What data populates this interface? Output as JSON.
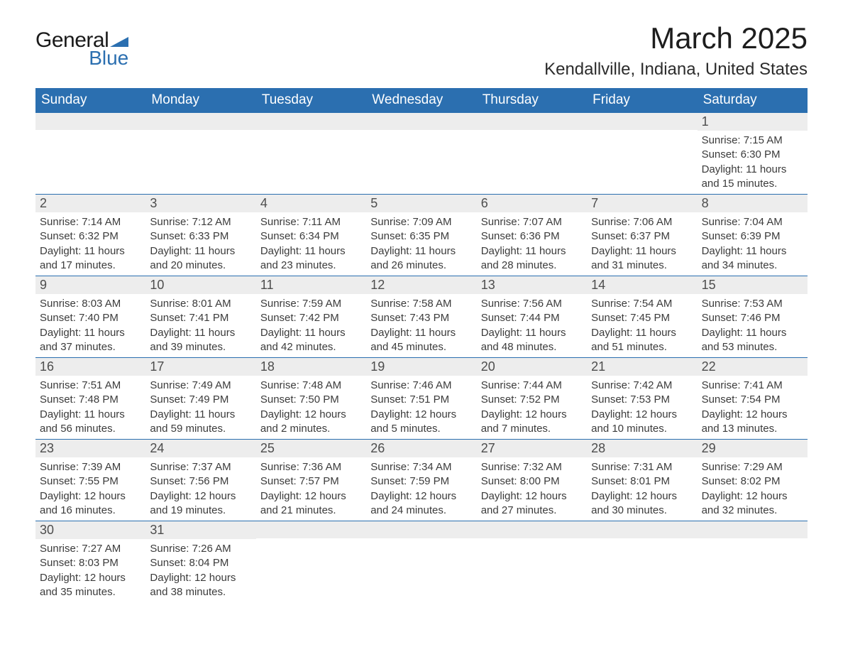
{
  "brand": {
    "text1": "General",
    "text2": "Blue",
    "text1_color": "#1a1a1a",
    "text2_color": "#2b6fb0",
    "triangle_color": "#2b6fb0"
  },
  "header": {
    "month_title": "March 2025",
    "location": "Kendallville, Indiana, United States"
  },
  "theme": {
    "header_bg": "#2b6fb0",
    "header_fg": "#ffffff",
    "daynum_bg": "#ededed",
    "daynum_fg": "#4d4d4d",
    "body_fg": "#3b3b3b",
    "border_color": "#2b6fb0",
    "page_bg": "#ffffff",
    "title_fontsize": 42,
    "location_fontsize": 24,
    "dow_fontsize": 19,
    "daynum_fontsize": 18,
    "body_fontsize": 15
  },
  "days_of_week": [
    "Sunday",
    "Monday",
    "Tuesday",
    "Wednesday",
    "Thursday",
    "Friday",
    "Saturday"
  ],
  "grid": {
    "leading_blanks": 6,
    "days": [
      {
        "n": "1",
        "sunrise": "7:15 AM",
        "sunset": "6:30 PM",
        "day_h": 11,
        "day_m": 15
      },
      {
        "n": "2",
        "sunrise": "7:14 AM",
        "sunset": "6:32 PM",
        "day_h": 11,
        "day_m": 17
      },
      {
        "n": "3",
        "sunrise": "7:12 AM",
        "sunset": "6:33 PM",
        "day_h": 11,
        "day_m": 20
      },
      {
        "n": "4",
        "sunrise": "7:11 AM",
        "sunset": "6:34 PM",
        "day_h": 11,
        "day_m": 23
      },
      {
        "n": "5",
        "sunrise": "7:09 AM",
        "sunset": "6:35 PM",
        "day_h": 11,
        "day_m": 26
      },
      {
        "n": "6",
        "sunrise": "7:07 AM",
        "sunset": "6:36 PM",
        "day_h": 11,
        "day_m": 28
      },
      {
        "n": "7",
        "sunrise": "7:06 AM",
        "sunset": "6:37 PM",
        "day_h": 11,
        "day_m": 31
      },
      {
        "n": "8",
        "sunrise": "7:04 AM",
        "sunset": "6:39 PM",
        "day_h": 11,
        "day_m": 34
      },
      {
        "n": "9",
        "sunrise": "8:03 AM",
        "sunset": "7:40 PM",
        "day_h": 11,
        "day_m": 37
      },
      {
        "n": "10",
        "sunrise": "8:01 AM",
        "sunset": "7:41 PM",
        "day_h": 11,
        "day_m": 39
      },
      {
        "n": "11",
        "sunrise": "7:59 AM",
        "sunset": "7:42 PM",
        "day_h": 11,
        "day_m": 42
      },
      {
        "n": "12",
        "sunrise": "7:58 AM",
        "sunset": "7:43 PM",
        "day_h": 11,
        "day_m": 45
      },
      {
        "n": "13",
        "sunrise": "7:56 AM",
        "sunset": "7:44 PM",
        "day_h": 11,
        "day_m": 48
      },
      {
        "n": "14",
        "sunrise": "7:54 AM",
        "sunset": "7:45 PM",
        "day_h": 11,
        "day_m": 51
      },
      {
        "n": "15",
        "sunrise": "7:53 AM",
        "sunset": "7:46 PM",
        "day_h": 11,
        "day_m": 53
      },
      {
        "n": "16",
        "sunrise": "7:51 AM",
        "sunset": "7:48 PM",
        "day_h": 11,
        "day_m": 56
      },
      {
        "n": "17",
        "sunrise": "7:49 AM",
        "sunset": "7:49 PM",
        "day_h": 11,
        "day_m": 59
      },
      {
        "n": "18",
        "sunrise": "7:48 AM",
        "sunset": "7:50 PM",
        "day_h": 12,
        "day_m": 2
      },
      {
        "n": "19",
        "sunrise": "7:46 AM",
        "sunset": "7:51 PM",
        "day_h": 12,
        "day_m": 5
      },
      {
        "n": "20",
        "sunrise": "7:44 AM",
        "sunset": "7:52 PM",
        "day_h": 12,
        "day_m": 7
      },
      {
        "n": "21",
        "sunrise": "7:42 AM",
        "sunset": "7:53 PM",
        "day_h": 12,
        "day_m": 10
      },
      {
        "n": "22",
        "sunrise": "7:41 AM",
        "sunset": "7:54 PM",
        "day_h": 12,
        "day_m": 13
      },
      {
        "n": "23",
        "sunrise": "7:39 AM",
        "sunset": "7:55 PM",
        "day_h": 12,
        "day_m": 16
      },
      {
        "n": "24",
        "sunrise": "7:37 AM",
        "sunset": "7:56 PM",
        "day_h": 12,
        "day_m": 19
      },
      {
        "n": "25",
        "sunrise": "7:36 AM",
        "sunset": "7:57 PM",
        "day_h": 12,
        "day_m": 21
      },
      {
        "n": "26",
        "sunrise": "7:34 AM",
        "sunset": "7:59 PM",
        "day_h": 12,
        "day_m": 24
      },
      {
        "n": "27",
        "sunrise": "7:32 AM",
        "sunset": "8:00 PM",
        "day_h": 12,
        "day_m": 27
      },
      {
        "n": "28",
        "sunrise": "7:31 AM",
        "sunset": "8:01 PM",
        "day_h": 12,
        "day_m": 30
      },
      {
        "n": "29",
        "sunrise": "7:29 AM",
        "sunset": "8:02 PM",
        "day_h": 12,
        "day_m": 32
      },
      {
        "n": "30",
        "sunrise": "7:27 AM",
        "sunset": "8:03 PM",
        "day_h": 12,
        "day_m": 35
      },
      {
        "n": "31",
        "sunrise": "7:26 AM",
        "sunset": "8:04 PM",
        "day_h": 12,
        "day_m": 38
      }
    ],
    "trailing_blanks": 5
  },
  "labels": {
    "sunrise": "Sunrise:",
    "sunset": "Sunset:",
    "daylight": "Daylight:",
    "hours": "hours",
    "and": "and",
    "minutes": "minutes."
  }
}
